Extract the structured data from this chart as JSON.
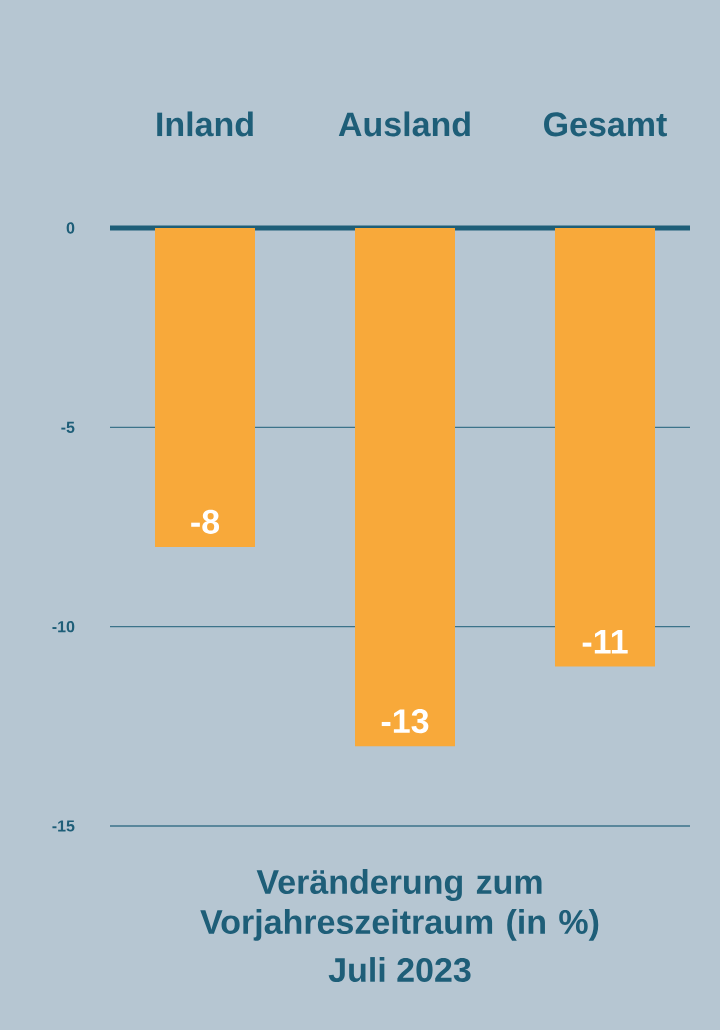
{
  "chart_data": {
    "type": "bar",
    "title": "Veränderung zum Vorjahreszeitraum (in %)",
    "subtitle": "Juli 2023",
    "categories": [
      "Inland",
      "Ausland",
      "Gesamt"
    ],
    "values": [
      -8,
      -13,
      -11
    ],
    "color": "#f8a93a",
    "ylim": [
      -15,
      0
    ],
    "yticks": [
      0,
      -5,
      -10,
      -15
    ],
    "grid": "y",
    "data_labels": true
  }
}
